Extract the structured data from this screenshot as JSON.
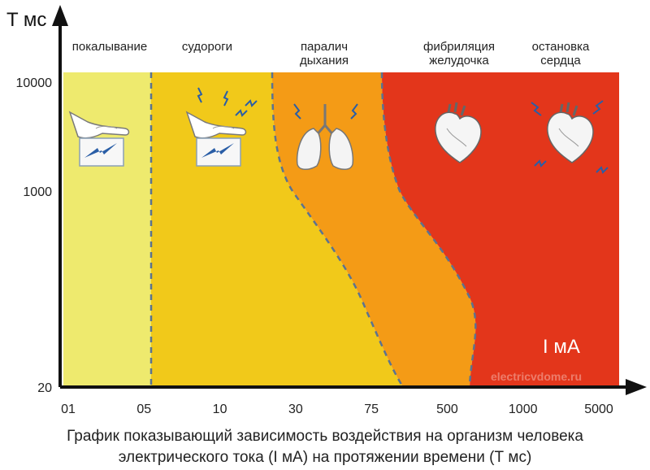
{
  "chart_data": {
    "type": "area",
    "y_axis_label": "T мс",
    "x_axis_label": "I мА",
    "y_ticks": [
      "10000",
      "1000",
      "20"
    ],
    "x_ticks": [
      "01",
      "05",
      "10",
      "30",
      "75",
      "500",
      "1000",
      "5000"
    ],
    "zones": [
      {
        "label": "покалывание",
        "color": "#eeea6e",
        "icon": "hand-spark-icon"
      },
      {
        "label": "судороги",
        "color": "#f1c91a",
        "icon": "hand-spark-icon"
      },
      {
        "label": "паралич дыхания",
        "color": "#f49b16",
        "icon": "lungs-icon"
      },
      {
        "label": "фибриляция желудочка",
        "color": "#e3361b",
        "icon": "heart-icon"
      },
      {
        "label": "остановка сердца",
        "color": "#e3361b",
        "icon": "heart-icon"
      }
    ],
    "watermark": "electricvdome.ru"
  },
  "caption": {
    "line1": "График показывающий зависимость воздействия на организм человека",
    "line2": "электрического тока (I мА) на протяжении времени (Т мс)"
  }
}
